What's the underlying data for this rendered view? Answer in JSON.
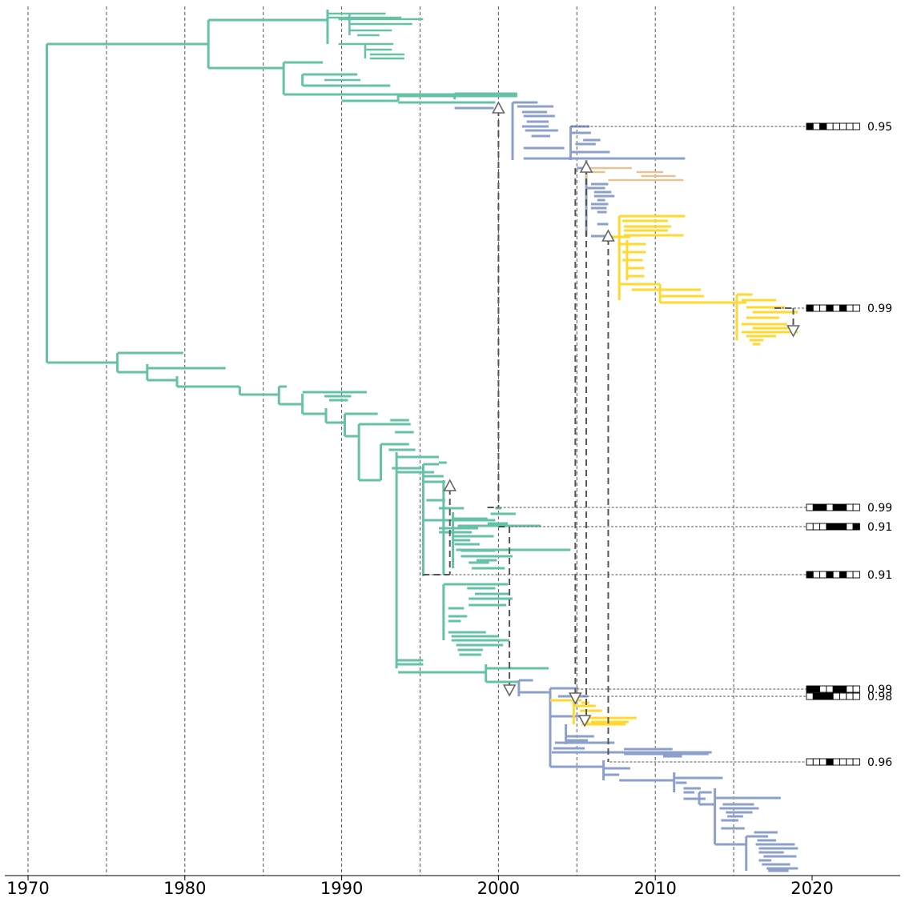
{
  "chart_data": {
    "type": "phylogenetic-tree",
    "title": "",
    "xlabel": "",
    "ylabel": "",
    "x_axis": {
      "type": "time",
      "range": [
        1966,
        2025.5
      ],
      "ticks": [
        1970,
        1980,
        1990,
        2000,
        2010,
        2020
      ],
      "minor_gridlines": [
        1970,
        1975,
        1980,
        1985,
        1990,
        1995,
        2000,
        2005,
        2010,
        2015
      ],
      "grid": "vertical-dashed"
    },
    "colors": {
      "clade_green": "#66c2a5",
      "clade_blue": "#8da0cb",
      "clade_tan": "#e5c494",
      "clade_yellow": "#ffd92f",
      "connector": "#555555",
      "grid": "#555555"
    },
    "migration_events": [
      {
        "from_year": 2000,
        "to_year": 2000,
        "direction": "up"
      },
      {
        "from_year": 2005.6,
        "to_year": 2005.6,
        "direction": "up"
      },
      {
        "from_year": 2007,
        "to_year": 2007,
        "direction": "up"
      },
      {
        "from_year": 1996.9,
        "to_year": 1996.9,
        "direction": "up"
      },
      {
        "from_year": 2018.8,
        "to_year": 2018.8,
        "direction": "down"
      },
      {
        "from_year": 2000.7,
        "to_year": 2000.7,
        "direction": "down"
      },
      {
        "from_year": 2004.9,
        "to_year": 2004.9,
        "direction": "down"
      },
      {
        "from_year": 2005.5,
        "to_year": 2005.5,
        "direction": "down"
      }
    ],
    "support_annotations": [
      {
        "value": "0.95",
        "node_year": 2004.6,
        "pattern": [
          1,
          0,
          1,
          0,
          0,
          0,
          0,
          0
        ]
      },
      {
        "value": "0.99",
        "node_year": 2017.8,
        "pattern": [
          1,
          0,
          0,
          1,
          0,
          1,
          0,
          0
        ]
      },
      {
        "value": "0.99",
        "node_year": 1999.3,
        "pattern": [
          0,
          1,
          1,
          0,
          1,
          1,
          0,
          0
        ]
      },
      {
        "value": "0.91",
        "node_year": 2000.8,
        "pattern": [
          0,
          0,
          0,
          1,
          1,
          1,
          0,
          1
        ]
      },
      {
        "value": "0.91",
        "node_year": 1995.2,
        "pattern": [
          1,
          0,
          0,
          1,
          0,
          1,
          0,
          0
        ]
      },
      {
        "value": "0.99",
        "node_year": 2005.0,
        "pattern": [
          1,
          1,
          0,
          0,
          1,
          1,
          0,
          0
        ]
      },
      {
        "value": "0.98",
        "node_year": 2005.4,
        "pattern": [
          0,
          1,
          1,
          1,
          0,
          0,
          0,
          0
        ]
      },
      {
        "value": "0.96",
        "node_year": 2007.1,
        "pattern": [
          0,
          0,
          0,
          1,
          0,
          0,
          0,
          0
        ]
      }
    ]
  }
}
